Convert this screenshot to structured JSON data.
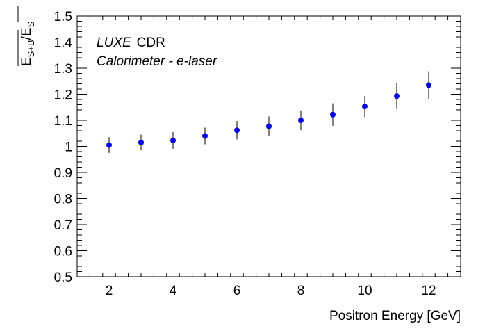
{
  "chart_data": {
    "type": "scatter",
    "xlabel": "Positron Energy [GeV]",
    "ylabel": {
      "num_main": "E",
      "num_sub": "S+B",
      "sep": "/",
      "den_main": "E",
      "den_sub": "S"
    },
    "xlim": [
      1.0,
      13.0
    ],
    "ylim": [
      0.5,
      1.5
    ],
    "x_ticks": [
      2,
      4,
      6,
      8,
      10,
      12
    ],
    "y_ticks": [
      "0.5",
      "0.6",
      "0.7",
      "0.8",
      "0.9",
      "1",
      "1.1",
      "1.2",
      "1.3",
      "1.4",
      "1.5"
    ],
    "annotation": {
      "line1_italic": "LUXE",
      "line1_rest": "CDR",
      "line2": "Calorimeter - e-laser"
    },
    "marker_color": "#0000ff",
    "errorbar_color": "#000000",
    "points": [
      {
        "x": 2,
        "y": 1.005,
        "err": 0.03
      },
      {
        "x": 3,
        "y": 1.015,
        "err": 0.03
      },
      {
        "x": 4,
        "y": 1.023,
        "err": 0.032
      },
      {
        "x": 5,
        "y": 1.04,
        "err": 0.032
      },
      {
        "x": 6,
        "y": 1.062,
        "err": 0.035
      },
      {
        "x": 7,
        "y": 1.077,
        "err": 0.038
      },
      {
        "x": 8,
        "y": 1.1,
        "err": 0.038
      },
      {
        "x": 9,
        "y": 1.122,
        "err": 0.043
      },
      {
        "x": 10,
        "y": 1.153,
        "err": 0.04
      },
      {
        "x": 11,
        "y": 1.193,
        "err": 0.05
      },
      {
        "x": 12,
        "y": 1.235,
        "err": 0.053
      }
    ]
  }
}
